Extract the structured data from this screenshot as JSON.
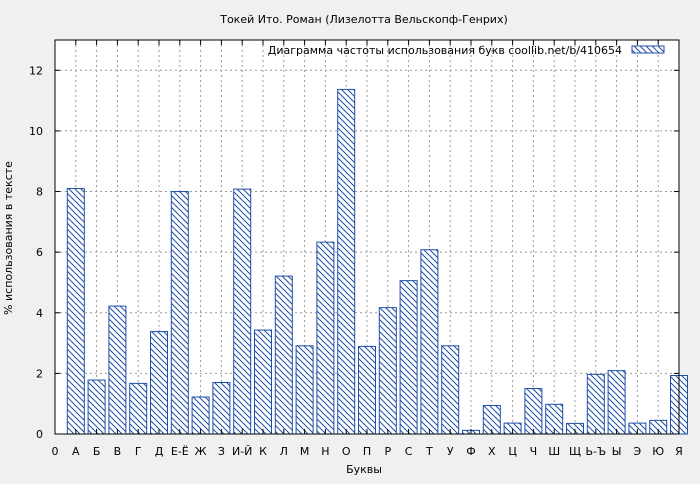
{
  "chart_data": {
    "type": "bar",
    "title": "Токей Ито. Роман (Лизелотта Вельскопф-Генрих)",
    "xlabel": "Буквы",
    "ylabel": "% использования в тексте",
    "ylim": [
      0,
      13
    ],
    "yticks": [
      0,
      2,
      4,
      6,
      8,
      10,
      12
    ],
    "grid": true,
    "legend_position": "top-right",
    "colors": {
      "bar_stroke": "#1f4fa8",
      "background": "#f0f0f0",
      "plot_background": "#ffffff",
      "grid": "#9a9a9a"
    },
    "series": [
      {
        "name": "Диаграмма частоты использования букв  coollib.net/b/410654",
        "values": [
          8.1,
          1.78,
          4.22,
          1.67,
          3.38,
          8.0,
          1.22,
          1.7,
          8.08,
          3.43,
          5.21,
          2.91,
          6.33,
          11.37,
          2.89,
          4.17,
          5.06,
          6.08,
          2.91,
          0.12,
          0.94,
          0.36,
          1.5,
          0.98,
          0.35,
          1.97,
          2.09,
          0.36,
          0.45,
          1.93
        ]
      }
    ],
    "categories": [
      "А",
      "Б",
      "В",
      "Г",
      "Д",
      "Е-Ё",
      "Ж",
      "З",
      "И-Й",
      "К",
      "Л",
      "М",
      "Н",
      "О",
      "П",
      "Р",
      "С",
      "Т",
      "У",
      "Ф",
      "Х",
      "Ц",
      "Ч",
      "Ш",
      "Щ",
      "Ь-Ъ",
      "Ы",
      "Э",
      "Ю",
      "Я"
    ],
    "x_tick_labels": [
      "0",
      "А",
      "Б",
      "В",
      "Г",
      "Д",
      "Е-Ё",
      "Ж",
      "З",
      "И-Й",
      "К",
      "Л",
      "М",
      "Н",
      "О",
      "П",
      "Р",
      "С",
      "Т",
      "У",
      "Ф",
      "Х",
      "Ц",
      "Ч",
      "Ш",
      "Щ",
      "Ь-Ъ",
      "Ы",
      "Э",
      "Ю",
      "Я"
    ]
  }
}
